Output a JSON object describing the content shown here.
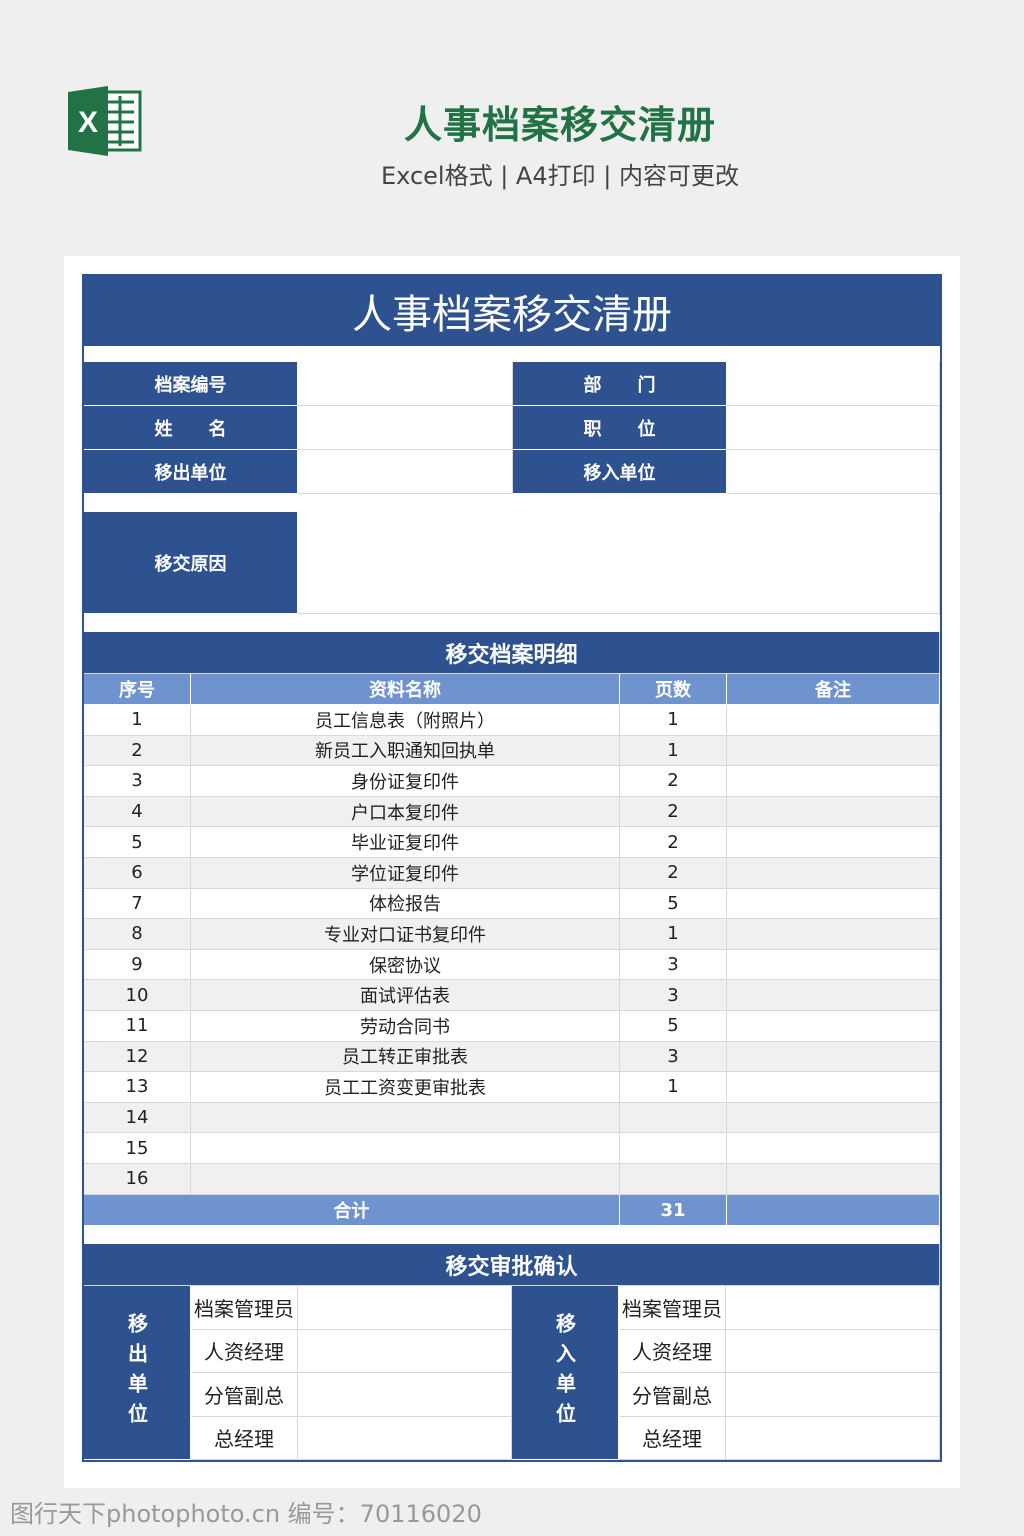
{
  "header": {
    "title": "人事档案移交清册",
    "subtitle": "Excel格式 | A4打印 | 内容可更改",
    "logo_icon": "excel-icon",
    "logo_letter": "X",
    "brand_color": "#217346"
  },
  "sheet": {
    "title": "人事档案移交清册",
    "info": [
      [
        "档案编号",
        "部　　门"
      ],
      [
        "姓　　名",
        "职　　位"
      ],
      [
        "移出单位",
        "移入单位"
      ]
    ],
    "reason_label": "移交原因",
    "detail_title": "移交档案明细",
    "columns": [
      "序号",
      "资料名称",
      "页数",
      "备注"
    ],
    "rows": [
      [
        "1",
        "员工信息表（附照片）",
        "1",
        ""
      ],
      [
        "2",
        "新员工入职通知回执单",
        "1",
        ""
      ],
      [
        "3",
        "身份证复印件",
        "2",
        ""
      ],
      [
        "4",
        "户口本复印件",
        "2",
        ""
      ],
      [
        "5",
        "毕业证复印件",
        "2",
        ""
      ],
      [
        "6",
        "学位证复印件",
        "2",
        ""
      ],
      [
        "7",
        "体检报告",
        "5",
        ""
      ],
      [
        "8",
        "专业对口证书复印件",
        "1",
        ""
      ],
      [
        "9",
        "保密协议",
        "3",
        ""
      ],
      [
        "10",
        "面试评估表",
        "3",
        ""
      ],
      [
        "11",
        "劳动合同书",
        "5",
        ""
      ],
      [
        "12",
        "员工转正审批表",
        "3",
        ""
      ],
      [
        "13",
        "员工工资变更审批表",
        "1",
        ""
      ],
      [
        "14",
        "",
        "",
        ""
      ],
      [
        "15",
        "",
        "",
        ""
      ],
      [
        "16",
        "",
        "",
        ""
      ]
    ],
    "total_label": "合计",
    "total_pages": "31",
    "approval_title": "移交审批确认",
    "out_label": "移出单位",
    "in_label": "移入单位",
    "roles": [
      "档案管理员",
      "人资经理",
      "分管副总",
      "总经理"
    ],
    "colors": {
      "dark_blue": "#2e5190",
      "light_blue": "#6f93cf"
    }
  },
  "watermark": "图行天下photophoto.cn 编号：70116020"
}
